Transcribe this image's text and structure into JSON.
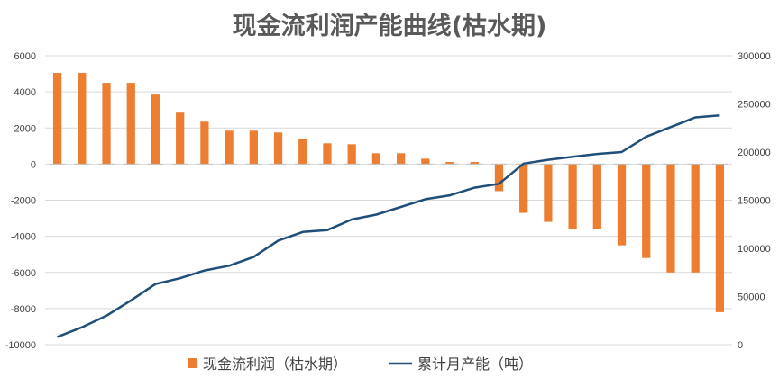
{
  "chart_data": {
    "type": "bar+line",
    "title": "现金流利润产能曲线(枯水期)",
    "xlabel": "",
    "ylabel": "",
    "y_left": {
      "range": [
        -10000,
        6000
      ],
      "ticks": [
        -10000,
        -8000,
        -6000,
        -4000,
        -2000,
        0,
        2000,
        4000,
        6000
      ]
    },
    "y_right": {
      "range": [
        0,
        300000
      ],
      "ticks": [
        0,
        50000,
        100000,
        150000,
        200000,
        250000,
        300000
      ]
    },
    "grid": true,
    "legend_position": "bottom",
    "series": [
      {
        "name": "现金流利润（枯水期）",
        "type": "bar",
        "axis": "left",
        "color": "#ed7d31",
        "values": [
          5050,
          5050,
          4500,
          4500,
          3850,
          2850,
          2350,
          1850,
          1850,
          1750,
          1400,
          1150,
          1100,
          600,
          600,
          300,
          120,
          120,
          -1500,
          -2700,
          -3200,
          -3600,
          -3600,
          -4500,
          -5200,
          -6000,
          -6000,
          -8200
        ]
      },
      {
        "name": "累计月产能（吨）",
        "type": "line",
        "axis": "right",
        "color": "#1f4e79",
        "values": [
          8000,
          18000,
          30000,
          46000,
          63000,
          69000,
          77000,
          82000,
          91000,
          108000,
          117000,
          119000,
          130000,
          135000,
          143000,
          151000,
          155000,
          163000,
          167000,
          188000,
          192000,
          195000,
          198000,
          200000,
          216000,
          226000,
          236000,
          238000
        ]
      }
    ]
  },
  "colors": {
    "bar": "#ed7d31",
    "line": "#1f4e79",
    "grid": "#d9d9d9",
    "text": "#404040"
  }
}
